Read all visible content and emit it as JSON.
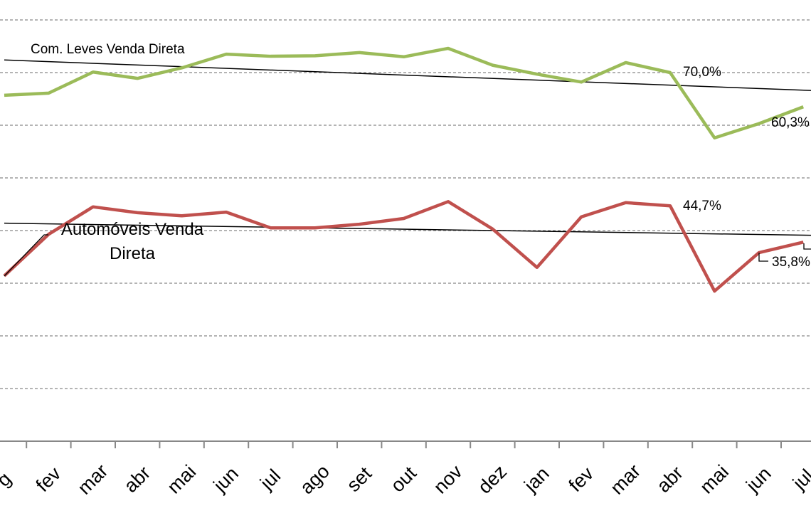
{
  "chart_data": {
    "type": "line",
    "categories": [
      "g",
      "fev",
      "mar",
      "abr",
      "mai",
      "jun",
      "jul",
      "ago",
      "set",
      "out",
      "nov",
      "dez",
      "jan",
      "fev",
      "mar",
      "abr",
      "mai",
      "jun",
      "jul"
    ],
    "ylim": [
      0,
      80
    ],
    "grid": true,
    "series": [
      {
        "name": "Com. Leves Venda Direta",
        "color": "#9BBB59",
        "values": [
          65.7,
          66.1,
          70.1,
          68.9,
          70.9,
          73.5,
          73.1,
          73.2,
          73.8,
          73.0,
          74.6,
          71.4,
          69.7,
          68.2,
          71.9,
          70.0,
          57.6,
          60.3,
          63.5
        ],
        "trend": [
          72.4,
          66.6
        ]
      },
      {
        "name": "Automóveis Venda Direta",
        "name_lines": [
          "Automóveis Venda",
          "Direta"
        ],
        "color": "#C0504D",
        "values": [
          31.4,
          39.3,
          44.5,
          43.4,
          42.8,
          43.5,
          40.5,
          40.5,
          41.2,
          42.3,
          45.5,
          40.3,
          33.0,
          42.6,
          45.3,
          44.7,
          28.5,
          35.8,
          37.8
        ],
        "trend": [
          41.4,
          39.1
        ]
      }
    ],
    "annotations": [
      {
        "series": 0,
        "index": 15,
        "text": "70,0%"
      },
      {
        "series": 0,
        "index": 17,
        "text": "60,3%"
      },
      {
        "series": 1,
        "index": 15,
        "text": "44,7%"
      },
      {
        "series": 1,
        "index": 17,
        "text": "35,8%"
      }
    ]
  }
}
